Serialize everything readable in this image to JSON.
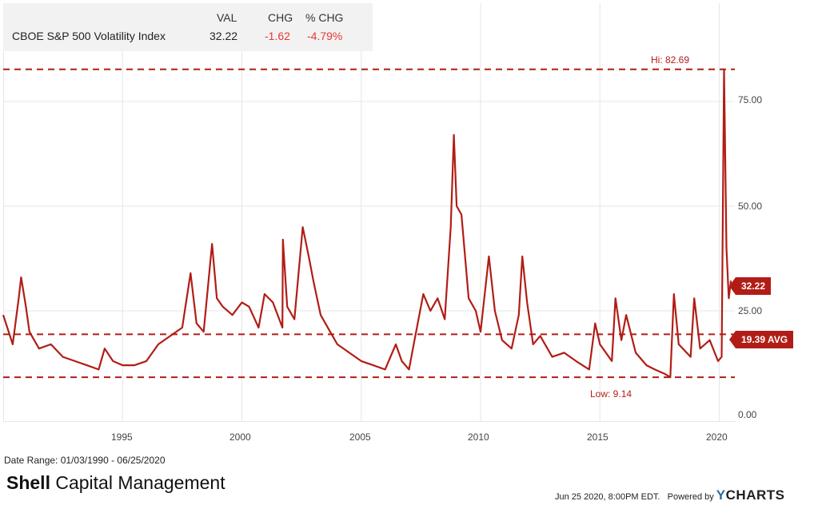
{
  "legend": {
    "headers": {
      "val": "VAL",
      "chg": "CHG",
      "pct": "% CHG"
    },
    "series_name": "CBOE S&P 500 Volatility Index",
    "val": "32.22",
    "chg": "-1.62",
    "pct": "-4.79%"
  },
  "reference_labels": {
    "high": "Hi: 82.69",
    "low": "Low: 9.14",
    "avg_flag": "19.39 AVG",
    "last_flag": "32.22"
  },
  "y_ticks": [
    "75.00",
    "50.00",
    "25.00",
    "0.00"
  ],
  "x_ticks": [
    "1995",
    "2000",
    "2005",
    "2010",
    "2015",
    "2020"
  ],
  "footer": {
    "date_range": "Date Range: 01/03/1990 - 06/25/2020",
    "brand_bold": "Shell",
    "brand_rest": " Capital Management",
    "timestamp": "Jun 25 2020, 8:00PM EDT.",
    "powered_by": "Powered by",
    "ycharts_y": "Y",
    "ycharts_rest": "CHARTS"
  },
  "colors": {
    "line": "#b11d16",
    "negative": "#e53935",
    "grid": "#e6e6e6"
  },
  "chart_data": {
    "type": "line",
    "series": [
      {
        "name": "CBOE S&P 500 Volatility Index",
        "points": [
          [
            1990.0,
            24
          ],
          [
            1990.4,
            17
          ],
          [
            1990.65,
            28
          ],
          [
            1990.75,
            33
          ],
          [
            1990.95,
            26
          ],
          [
            1991.1,
            20
          ],
          [
            1991.5,
            16
          ],
          [
            1992.0,
            17
          ],
          [
            1992.5,
            14
          ],
          [
            1993.0,
            13
          ],
          [
            1993.5,
            12
          ],
          [
            1994.0,
            11
          ],
          [
            1994.25,
            16
          ],
          [
            1994.6,
            13
          ],
          [
            1995.0,
            12
          ],
          [
            1995.5,
            12
          ],
          [
            1996.0,
            13
          ],
          [
            1996.5,
            17
          ],
          [
            1997.0,
            19
          ],
          [
            1997.5,
            21
          ],
          [
            1997.85,
            34
          ],
          [
            1998.1,
            22
          ],
          [
            1998.4,
            20
          ],
          [
            1998.75,
            41
          ],
          [
            1998.95,
            28
          ],
          [
            1999.2,
            26
          ],
          [
            1999.6,
            24
          ],
          [
            2000.0,
            27
          ],
          [
            2000.3,
            26
          ],
          [
            2000.7,
            21
          ],
          [
            2000.95,
            29
          ],
          [
            2001.3,
            27
          ],
          [
            2001.7,
            21
          ],
          [
            2001.72,
            42
          ],
          [
            2001.9,
            26
          ],
          [
            2002.2,
            23
          ],
          [
            2002.55,
            45
          ],
          [
            2002.8,
            38
          ],
          [
            2003.0,
            32
          ],
          [
            2003.3,
            24
          ],
          [
            2003.7,
            20
          ],
          [
            2004.0,
            17
          ],
          [
            2004.5,
            15
          ],
          [
            2005.0,
            13
          ],
          [
            2005.5,
            12
          ],
          [
            2006.0,
            11
          ],
          [
            2006.45,
            17
          ],
          [
            2006.7,
            13
          ],
          [
            2007.0,
            11
          ],
          [
            2007.2,
            17
          ],
          [
            2007.6,
            29
          ],
          [
            2007.9,
            25
          ],
          [
            2008.2,
            28
          ],
          [
            2008.5,
            23
          ],
          [
            2008.75,
            45
          ],
          [
            2008.88,
            67
          ],
          [
            2009.0,
            50
          ],
          [
            2009.2,
            48
          ],
          [
            2009.5,
            28
          ],
          [
            2009.8,
            25
          ],
          [
            2010.0,
            20
          ],
          [
            2010.35,
            38
          ],
          [
            2010.6,
            25
          ],
          [
            2010.9,
            18
          ],
          [
            2011.3,
            16
          ],
          [
            2011.6,
            24
          ],
          [
            2011.75,
            38
          ],
          [
            2011.95,
            27
          ],
          [
            2012.2,
            17
          ],
          [
            2012.5,
            19
          ],
          [
            2013.0,
            14
          ],
          [
            2013.5,
            15
          ],
          [
            2014.0,
            13
          ],
          [
            2014.55,
            11
          ],
          [
            2014.8,
            22
          ],
          [
            2015.0,
            17
          ],
          [
            2015.5,
            13
          ],
          [
            2015.65,
            28
          ],
          [
            2015.9,
            18
          ],
          [
            2016.1,
            24
          ],
          [
            2016.5,
            15
          ],
          [
            2016.95,
            12
          ],
          [
            2017.3,
            11
          ],
          [
            2017.7,
            10
          ],
          [
            2017.95,
            9.14
          ],
          [
            2018.1,
            29
          ],
          [
            2018.3,
            17
          ],
          [
            2018.8,
            14
          ],
          [
            2018.95,
            28
          ],
          [
            2019.2,
            16
          ],
          [
            2019.6,
            18
          ],
          [
            2019.95,
            13
          ],
          [
            2020.1,
            14
          ],
          [
            2020.2,
            82.69
          ],
          [
            2020.3,
            40
          ],
          [
            2020.4,
            28
          ],
          [
            2020.49,
            32.22
          ]
        ]
      }
    ],
    "high": 82.69,
    "low": 9.14,
    "average": 19.39,
    "last": 32.22,
    "x_range": [
      "01/03/1990",
      "06/25/2020"
    ],
    "ylim": [
      0,
      90
    ],
    "grid": true,
    "y_ticks": [
      0,
      25,
      50,
      75
    ],
    "x_ticks": [
      1995,
      2000,
      2005,
      2010,
      2015,
      2020
    ]
  }
}
